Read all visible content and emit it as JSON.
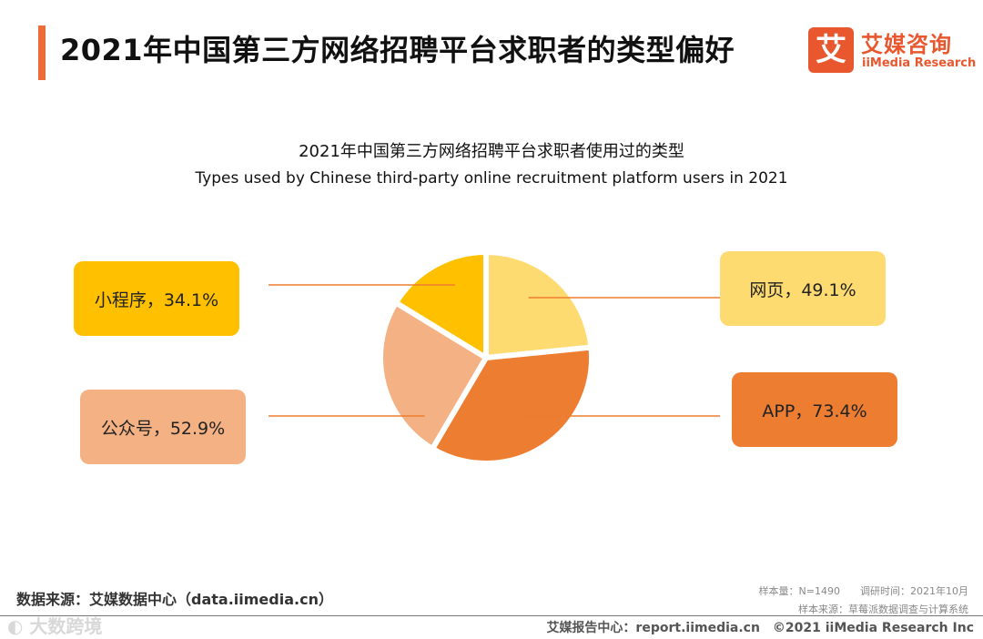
{
  "header": {
    "title": "2021年中国第三方网络招聘平台求职者的类型偏好",
    "logo_mark": "艾",
    "logo_cn": "艾媒咨询",
    "logo_en": "iiMedia Research"
  },
  "chart_data": {
    "type": "pie",
    "title": "2021年中国第三方网络招聘平台求职者使用过的类型",
    "subtitle": "Types used by Chinese third-party online recruitment platform users in 2021",
    "categories": [
      "网页",
      "APP",
      "公众号",
      "小程序"
    ],
    "values": [
      49.1,
      73.4,
      52.9,
      34.1
    ],
    "labels": [
      "网页，49.1%",
      "APP，73.4%",
      "公众号，52.9%",
      "小程序，34.1%"
    ],
    "colors": [
      "#fedb70",
      "#ed7d31",
      "#f4b183",
      "#ffc000"
    ]
  },
  "footer": {
    "source": "数据来源：艾媒数据中心（data.iimedia.cn）",
    "sample": "样本量：N=1490　　调研时间：2021年10月",
    "sample_source": "样本来源：草莓派数据调查与计算系统",
    "report": "艾媒报告中心：report.iimedia.cn　©2021  iiMedia Research  Inc",
    "watermark": "◐ 大数跨境"
  }
}
